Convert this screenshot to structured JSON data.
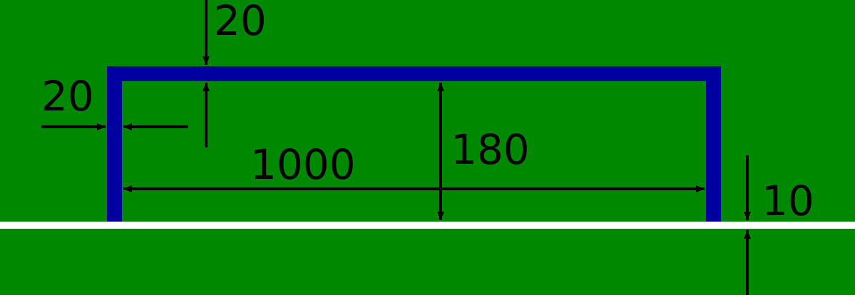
{
  "colors": {
    "field": "#008800",
    "goal": "#0000a0",
    "line": "#ffffff",
    "arrow": "#000000"
  },
  "labels": {
    "crossbar_thickness": "20",
    "post_thickness": "20",
    "goal_width": "1000",
    "goal_height": "180",
    "line_width": "10"
  }
}
